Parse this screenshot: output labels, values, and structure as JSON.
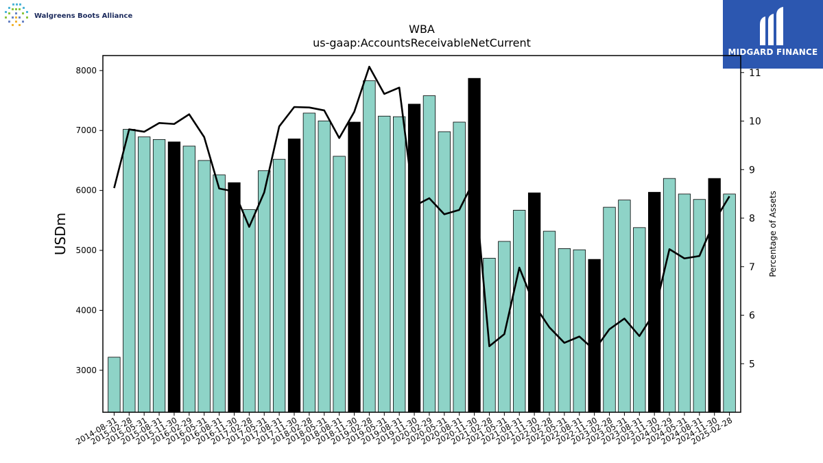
{
  "header": {
    "company_logo_text": "Walgreens Boots Alliance",
    "brand_name": "MIDGARD FINANCE"
  },
  "colors": {
    "bar_regular": "#8ed3c7",
    "bar_highlight": "#000000",
    "line": "#000000",
    "brand_background": "#2c57b0"
  },
  "chart_data": {
    "type": "bar",
    "title": "WBA",
    "subtitle": "us-gaap:AccountsReceivableNetCurrent",
    "ylabel": "USDm",
    "y2label": "Percentage of Assets",
    "ylim": [
      2300,
      8250
    ],
    "y2lim": [
      4.0,
      11.35
    ],
    "yticks": [
      3000,
      4000,
      5000,
      6000,
      7000,
      8000
    ],
    "y2ticks": [
      5,
      6,
      7,
      8,
      9,
      10,
      11
    ],
    "grid": false,
    "categories": [
      "2014-08-31",
      "2015-02-28",
      "2015-05-31",
      "2015-08-31",
      "2015-11-30",
      "2016-02-29",
      "2016-05-31",
      "2016-08-31",
      "2016-11-30",
      "2017-02-28",
      "2017-05-31",
      "2017-08-31",
      "2017-11-30",
      "2018-02-28",
      "2018-05-31",
      "2018-08-31",
      "2018-11-30",
      "2019-02-28",
      "2019-05-31",
      "2019-08-31",
      "2019-11-30",
      "2020-02-29",
      "2020-05-31",
      "2020-08-31",
      "2020-11-30",
      "2021-02-28",
      "2021-05-31",
      "2021-08-31",
      "2021-11-30",
      "2022-02-28",
      "2022-05-31",
      "2022-08-31",
      "2022-11-30",
      "2023-02-28",
      "2023-05-31",
      "2023-08-31",
      "2023-11-30",
      "2024-02-29",
      "2024-05-31",
      "2024-08-31",
      "2024-11-30",
      "2025-02-28"
    ],
    "series": [
      {
        "type": "bar",
        "axis": "left",
        "values": [
          3218,
          7020,
          6893,
          6850,
          6810,
          6740,
          6500,
          6260,
          6130,
          5680,
          6330,
          6520,
          6860,
          7290,
          7160,
          6570,
          7140,
          7830,
          7240,
          7230,
          7440,
          7580,
          6980,
          7140,
          7870,
          4870,
          5150,
          5670,
          5960,
          5320,
          5030,
          5010,
          4850,
          5720,
          5840,
          5380,
          5970,
          6200,
          5940,
          5850,
          6200,
          5940
        ],
        "highlighted": [
          false,
          false,
          false,
          false,
          true,
          false,
          false,
          false,
          true,
          false,
          false,
          false,
          true,
          false,
          false,
          false,
          true,
          false,
          false,
          false,
          true,
          false,
          false,
          false,
          true,
          false,
          false,
          false,
          true,
          false,
          false,
          false,
          true,
          false,
          false,
          false,
          true,
          false,
          false,
          false,
          true,
          false
        ]
      },
      {
        "type": "line",
        "axis": "right",
        "values": [
          8.62,
          9.83,
          9.78,
          9.96,
          9.94,
          10.14,
          9.67,
          8.61,
          8.55,
          7.82,
          8.53,
          9.89,
          10.29,
          10.28,
          10.22,
          9.65,
          10.19,
          11.12,
          10.56,
          10.69,
          8.25,
          8.41,
          8.08,
          8.17,
          8.79,
          5.36,
          5.61,
          6.98,
          6.21,
          5.75,
          5.43,
          5.56,
          5.28,
          5.71,
          5.93,
          5.57,
          6.05,
          7.36,
          7.17,
          7.22,
          7.94,
          8.45
        ]
      }
    ]
  }
}
